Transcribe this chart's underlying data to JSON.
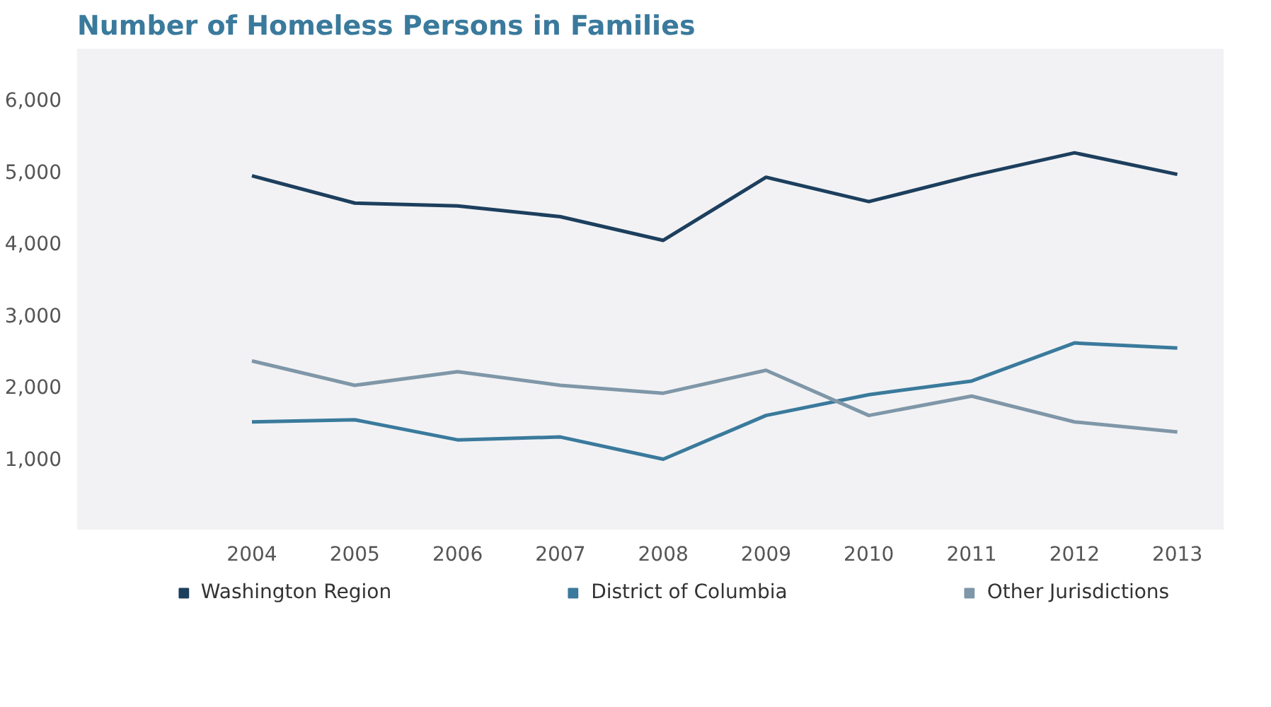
{
  "chart_data": {
    "type": "line",
    "title": "Number of Homeless Persons in Families",
    "categories": [
      "2004",
      "2005",
      "2006",
      "2007",
      "2008",
      "2009",
      "2010",
      "2011",
      "2012",
      "2013"
    ],
    "series": [
      {
        "name": "Washington Region",
        "color": "#1d3f5e",
        "values": [
          4930,
          4550,
          4510,
          4360,
          4030,
          4910,
          4570,
          4930,
          5250,
          4950
        ]
      },
      {
        "name": "District of Columbia",
        "color": "#3a7a9c",
        "values": [
          1500,
          1530,
          1250,
          1290,
          980,
          1590,
          1880,
          2070,
          2600,
          2530
        ]
      },
      {
        "name": "Other Jurisdictions",
        "color": "#7f97a8",
        "values": [
          2350,
          2010,
          2200,
          2010,
          1900,
          2220,
          1590,
          1860,
          1500,
          1360
        ]
      }
    ],
    "ylim": [
      0,
      6700
    ],
    "yticks": [
      {
        "value": 1000,
        "label": "1,000"
      },
      {
        "value": 2000,
        "label": "2,000"
      },
      {
        "value": 3000,
        "label": "3,000"
      },
      {
        "value": 4000,
        "label": "4,000"
      },
      {
        "value": 5000,
        "label": "5,000"
      },
      {
        "value": 6000,
        "label": "6,000"
      }
    ],
    "grid": false,
    "legend": "bottom",
    "marker": "none",
    "line_style": "solid"
  }
}
